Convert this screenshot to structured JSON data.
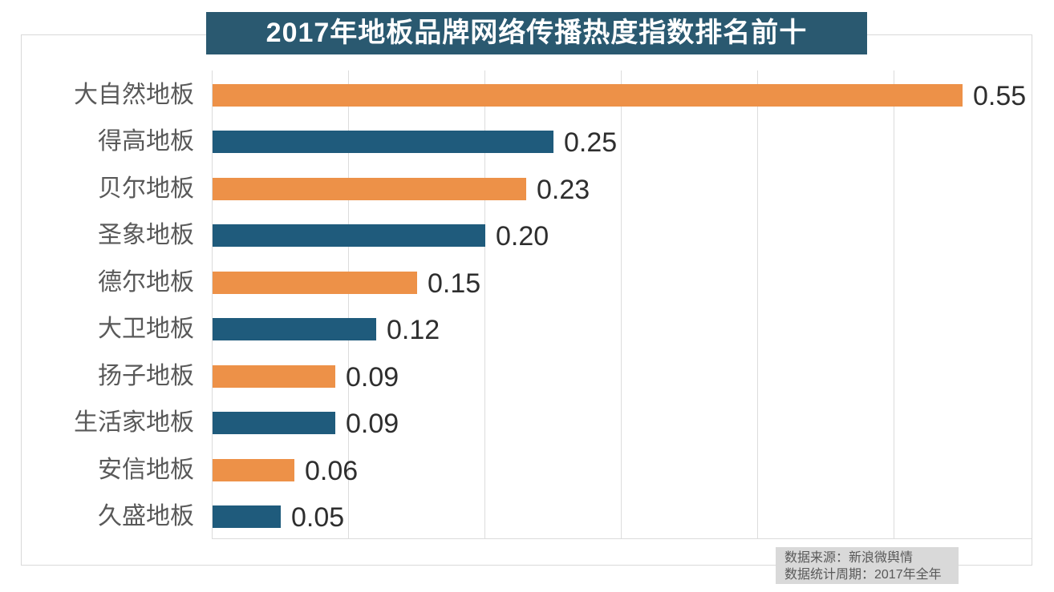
{
  "chart": {
    "title": "2017年地板品牌网络传播热度指数排名前十"
  },
  "chart_data": {
    "type": "bar",
    "orientation": "horizontal",
    "title": "2017年地板品牌网络传播热度指数排名前十",
    "categories": [
      "大自然地板",
      "得高地板",
      "贝尔地板",
      "圣象地板",
      "德尔地板",
      "大卫地板",
      "扬子地板",
      "生活家地板",
      "安信地板",
      "久盛地板"
    ],
    "values": [
      0.55,
      0.25,
      0.23,
      0.2,
      0.15,
      0.12,
      0.09,
      0.09,
      0.06,
      0.05
    ],
    "value_labels": [
      "0.55",
      "0.25",
      "0.23",
      "0.20",
      "0.15",
      "0.12",
      "0.09",
      "0.09",
      "0.06",
      "0.05"
    ],
    "xlabel": "",
    "ylabel": "",
    "xlim": [
      0,
      0.6
    ],
    "x_gridline_interval": 0.1,
    "grid": true,
    "legend": false
  },
  "colors": {
    "bar_orange": "#ED9148",
    "bar_blue": "#1F5B7C",
    "banner_bg": "#2A5970",
    "banner_text": "#ffffff",
    "gridline": "#dcdcdc",
    "category_text": "#595959",
    "value_text": "#2e2e2e",
    "source_bg": "#d9d9d9",
    "source_text": "#595959"
  },
  "source": {
    "line1": "数据来源：新浪微舆情",
    "line2": "数据统计周期：2017年全年"
  }
}
